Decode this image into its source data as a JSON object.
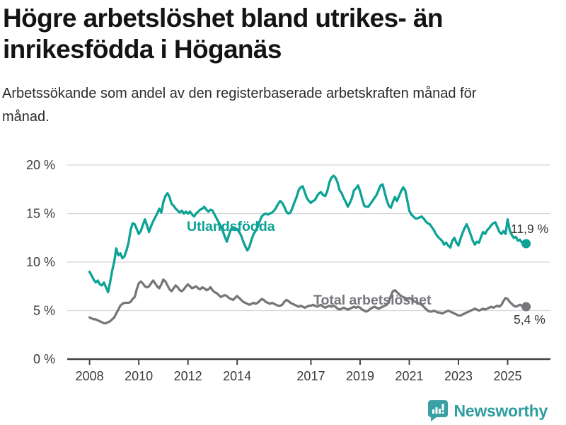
{
  "title": "Högre arbetslöshet bland utrikes- än inrikesfödda i Höganäs",
  "subtitle": "Arbetssökande som andel av den registerbaserade arbetskraften månad för månad.",
  "footer": {
    "brand": "Newsworthy",
    "logo_icon": "newsworthy-speech-bubble-barchart-icon"
  },
  "colors": {
    "foreign_born_line": "#0ca295",
    "total_line": "#76777b",
    "axis": "#444444",
    "grid": "#d4d4d4",
    "tick_text": "#3b3b3b",
    "end_label_text": "#333333",
    "brand_teal": "#2f9da0"
  },
  "chart_data": {
    "type": "line",
    "title": "Högre arbetslöshet bland utrikes- än inrikesfödda i Höganäs",
    "subtitle": "Arbetssökande som andel av den registerbaserade arbetskraften månad för månad.",
    "x_unit": "year-month",
    "x_start_year": 2008,
    "points_per_year": 12,
    "xlim": [
      2007.09,
      2026.74
    ],
    "ylim": [
      0,
      20
    ],
    "grid": true,
    "y_ticks": [
      0,
      5,
      10,
      15,
      20
    ],
    "y_tick_labels": [
      "0 %",
      "5 %",
      "10 %",
      "15 %",
      "20 %"
    ],
    "x_ticks": [
      2008,
      2010,
      2012,
      2014,
      2017,
      2019,
      2021,
      2023,
      2025
    ],
    "x_tick_labels": [
      "2008",
      "2010",
      "2012",
      "2014",
      "2017",
      "2019",
      "2021",
      "2023",
      "2025"
    ],
    "legend_position": "inline-labels",
    "series": [
      {
        "name": "Utlandsfödda",
        "color": "#0ca295",
        "end_label": "11,9 %",
        "end_value": 11.9,
        "values": [
          9.0,
          8.6,
          8.2,
          7.9,
          8.1,
          7.7,
          7.6,
          7.9,
          7.4,
          6.9,
          7.9,
          9.1,
          10.0,
          11.4,
          10.7,
          10.9,
          10.4,
          10.6,
          11.2,
          12.0,
          13.3,
          14.0,
          13.9,
          13.4,
          12.9,
          13.2,
          13.8,
          14.4,
          13.8,
          13.1,
          13.7,
          14.2,
          14.6,
          15.0,
          15.5,
          15.1,
          16.2,
          16.8,
          17.1,
          16.7,
          16.0,
          15.8,
          15.5,
          15.3,
          15.1,
          15.3,
          15.0,
          15.2,
          15.0,
          15.2,
          14.9,
          14.7,
          15.0,
          15.2,
          15.4,
          15.5,
          15.7,
          15.4,
          15.2,
          15.4,
          15.3,
          14.9,
          14.5,
          14.1,
          13.7,
          13.2,
          12.6,
          12.1,
          12.8,
          13.4,
          13.6,
          13.3,
          13.4,
          13.1,
          12.7,
          12.1,
          11.6,
          11.2,
          11.6,
          12.3,
          12.9,
          13.2,
          13.6,
          14.2,
          14.7,
          14.9,
          15.0,
          14.9,
          15.0,
          15.1,
          15.3,
          15.6,
          16.0,
          16.3,
          16.1,
          15.7,
          15.2,
          15.0,
          15.1,
          15.6,
          16.2,
          16.7,
          17.4,
          17.7,
          17.8,
          17.2,
          16.6,
          16.3,
          16.1,
          16.3,
          16.4,
          16.8,
          17.1,
          17.2,
          16.9,
          16.8,
          17.3,
          18.2,
          18.7,
          18.9,
          18.7,
          18.2,
          17.4,
          17.1,
          16.6,
          16.2,
          15.7,
          16.1,
          16.6,
          17.4,
          17.6,
          17.9,
          17.3,
          16.5,
          15.8,
          15.7,
          15.7,
          16.0,
          16.3,
          16.6,
          16.9,
          17.4,
          17.9,
          18.0,
          17.2,
          16.4,
          15.8,
          15.6,
          16.2,
          16.7,
          16.3,
          16.8,
          17.3,
          17.7,
          17.4,
          16.4,
          15.3,
          14.9,
          14.7,
          14.5,
          14.5,
          14.6,
          14.7,
          14.5,
          14.2,
          14.0,
          13.9,
          13.6,
          13.3,
          12.9,
          12.6,
          12.4,
          12.2,
          11.8,
          12.0,
          11.7,
          11.5,
          12.2,
          12.5,
          12.0,
          11.7,
          12.4,
          13.0,
          13.5,
          13.9,
          13.4,
          12.8,
          12.2,
          11.8,
          12.1,
          12.0,
          12.6,
          13.1,
          12.9,
          13.3,
          13.5,
          13.8,
          14.0,
          14.1,
          13.6,
          13.1,
          12.9,
          13.2,
          12.9,
          14.4,
          13.3,
          12.8,
          12.5,
          12.6,
          12.2,
          12.3,
          12.0,
          11.7,
          11.9
        ]
      },
      {
        "name": "Total arbetslöshet",
        "color": "#76777b",
        "end_label": "5,4 %",
        "end_value": 5.4,
        "values": [
          4.3,
          4.2,
          4.1,
          4.1,
          4.0,
          3.9,
          3.8,
          3.7,
          3.7,
          3.8,
          3.9,
          4.1,
          4.3,
          4.7,
          5.1,
          5.5,
          5.7,
          5.8,
          5.8,
          5.8,
          5.9,
          6.2,
          6.4,
          7.2,
          7.8,
          8.0,
          7.8,
          7.5,
          7.4,
          7.5,
          7.8,
          8.1,
          7.8,
          7.5,
          7.3,
          7.7,
          8.2,
          8.0,
          7.6,
          7.2,
          7.0,
          7.3,
          7.6,
          7.4,
          7.1,
          7.0,
          7.2,
          7.5,
          7.7,
          7.5,
          7.3,
          7.4,
          7.5,
          7.3,
          7.2,
          7.4,
          7.3,
          7.1,
          7.2,
          7.4,
          7.1,
          6.9,
          6.8,
          6.6,
          6.4,
          6.5,
          6.6,
          6.5,
          6.3,
          6.2,
          6.1,
          6.3,
          6.5,
          6.3,
          6.1,
          5.9,
          5.8,
          5.7,
          5.6,
          5.7,
          5.8,
          5.7,
          5.8,
          6.0,
          6.2,
          6.1,
          5.9,
          5.8,
          5.7,
          5.8,
          5.7,
          5.6,
          5.5,
          5.5,
          5.6,
          5.9,
          6.1,
          6.0,
          5.8,
          5.7,
          5.6,
          5.5,
          5.4,
          5.5,
          5.4,
          5.3,
          5.4,
          5.5,
          5.5,
          5.6,
          5.5,
          5.4,
          5.5,
          5.6,
          5.4,
          5.3,
          5.4,
          5.5,
          5.4,
          5.5,
          5.4,
          5.2,
          5.1,
          5.2,
          5.3,
          5.2,
          5.1,
          5.2,
          5.3,
          5.4,
          5.3,
          5.4,
          5.3,
          5.1,
          5.0,
          4.9,
          5.0,
          5.2,
          5.3,
          5.4,
          5.3,
          5.2,
          5.3,
          5.4,
          5.5,
          5.6,
          5.9,
          6.5,
          7.0,
          7.1,
          6.9,
          6.7,
          6.5,
          6.4,
          6.3,
          6.2,
          6.3,
          6.2,
          6.0,
          5.9,
          5.8,
          5.7,
          5.6,
          5.4,
          5.2,
          5.0,
          4.9,
          4.9,
          5.0,
          4.9,
          4.8,
          4.8,
          4.7,
          4.8,
          4.9,
          5.0,
          4.9,
          4.8,
          4.7,
          4.6,
          4.5,
          4.5,
          4.6,
          4.7,
          4.8,
          4.9,
          5.0,
          5.1,
          5.2,
          5.1,
          5.0,
          5.1,
          5.2,
          5.1,
          5.2,
          5.3,
          5.4,
          5.3,
          5.4,
          5.5,
          5.4,
          5.6,
          6.0,
          6.3,
          6.2,
          5.9,
          5.7,
          5.5,
          5.4,
          5.5,
          5.6,
          5.5,
          5.3,
          5.4
        ]
      }
    ]
  }
}
